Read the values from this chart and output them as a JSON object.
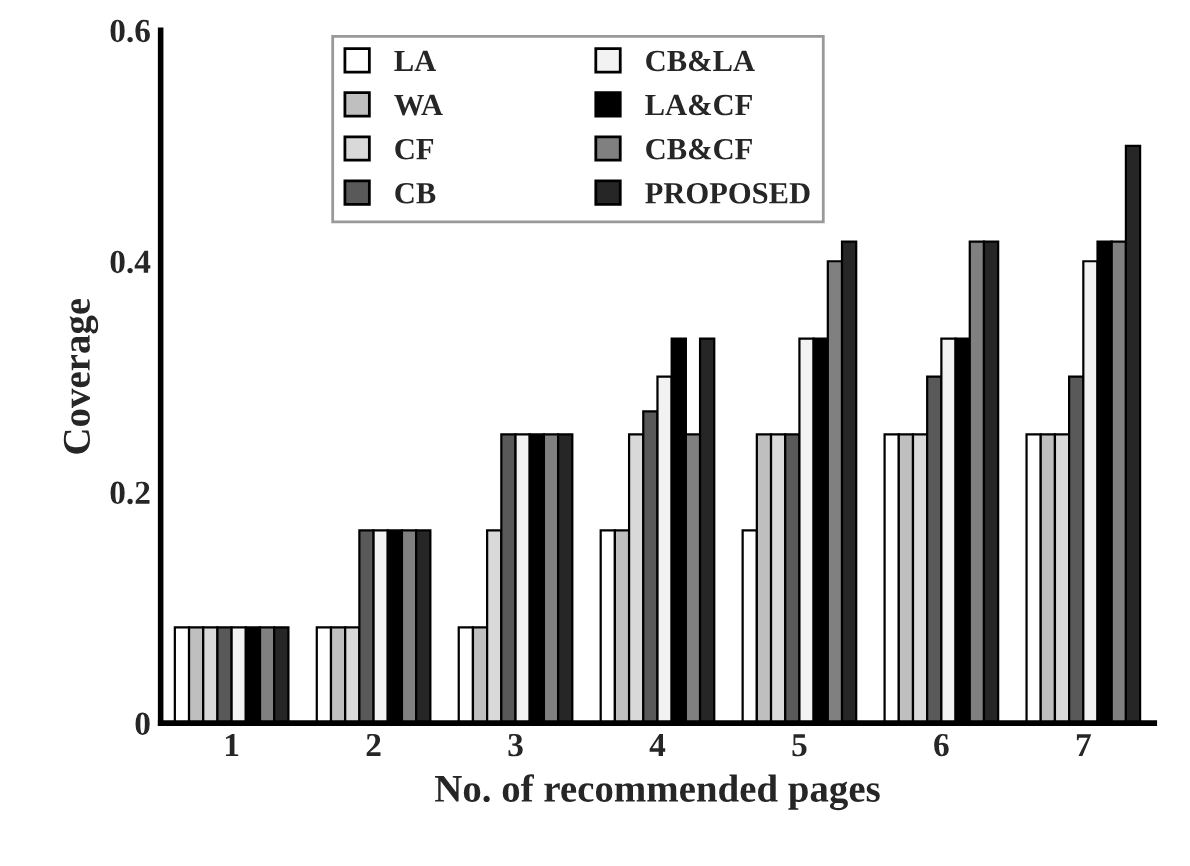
{
  "chart_data": {
    "type": "bar",
    "xlabel": "No. of recommended pages",
    "ylabel": "Coverage",
    "categories": [
      "1",
      "2",
      "3",
      "4",
      "5",
      "6",
      "7"
    ],
    "series": [
      {
        "name": "LA",
        "color": "#ffffff",
        "values": [
          0.083,
          0.083,
          0.083,
          0.167,
          0.167,
          0.25,
          0.25
        ]
      },
      {
        "name": "WA",
        "color": "#bfbfbf",
        "values": [
          0.083,
          0.083,
          0.083,
          0.167,
          0.25,
          0.25,
          0.25
        ]
      },
      {
        "name": "CF",
        "color": "#d9d9d9",
        "values": [
          0.083,
          0.083,
          0.167,
          0.25,
          0.25,
          0.25,
          0.25
        ]
      },
      {
        "name": "CB",
        "color": "#595959",
        "values": [
          0.083,
          0.167,
          0.25,
          0.27,
          0.25,
          0.3,
          0.3
        ]
      },
      {
        "name": "CB&LA",
        "color": "#f2f2f2",
        "values": [
          0.083,
          0.167,
          0.25,
          0.3,
          0.333,
          0.333,
          0.4
        ]
      },
      {
        "name": "LA&CF",
        "color": "#000000",
        "values": [
          0.083,
          0.167,
          0.25,
          0.333,
          0.333,
          0.333,
          0.417
        ]
      },
      {
        "name": "CB&CF",
        "color": "#808080",
        "values": [
          0.083,
          0.167,
          0.25,
          0.25,
          0.4,
          0.417,
          0.417
        ]
      },
      {
        "name": "PROPOSED",
        "color": "#262626",
        "values": [
          0.083,
          0.167,
          0.25,
          0.333,
          0.417,
          0.417,
          0.5
        ]
      }
    ],
    "ylim": [
      0,
      0.6
    ],
    "yticks": [
      {
        "value": 0,
        "label": "0"
      },
      0.2,
      0.4,
      0.6
    ],
    "grid": false,
    "legend": "top"
  }
}
